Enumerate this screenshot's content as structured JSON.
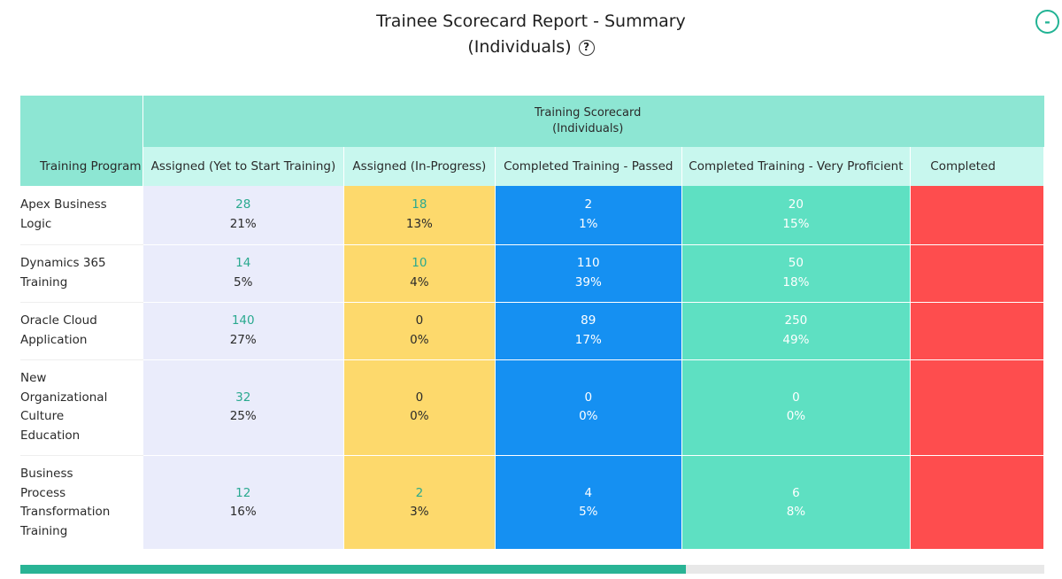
{
  "title": {
    "line1": "Trainee Scorecard Report - Summary",
    "line2": "(Individuals)",
    "help_icon": "?"
  },
  "collapse_icon": "-",
  "table": {
    "group_header_line1": "Training Scorecard",
    "group_header_line2": "(Individuals)",
    "program_header": "Training Program",
    "columns": [
      "Assigned (Yet to Start Training)",
      "Assigned (In-Progress)",
      "Completed Training - Passed",
      "Completed Training - Very Proficient",
      "Completed"
    ],
    "rows": [
      {
        "program": [
          "Apex Business",
          "Logic"
        ],
        "yet": {
          "num": "28",
          "pct": "21%"
        },
        "inprogress": {
          "num": "18",
          "pct": "13%"
        },
        "passed": {
          "num": "2",
          "pct": "1%"
        },
        "proficient": {
          "num": "20",
          "pct": "15%"
        }
      },
      {
        "program": [
          "Dynamics 365",
          "Training"
        ],
        "yet": {
          "num": "14",
          "pct": "5%"
        },
        "inprogress": {
          "num": "10",
          "pct": "4%"
        },
        "passed": {
          "num": "110",
          "pct": "39%"
        },
        "proficient": {
          "num": "50",
          "pct": "18%"
        }
      },
      {
        "program": [
          "Oracle Cloud",
          "Application"
        ],
        "yet": {
          "num": "140",
          "pct": "27%"
        },
        "inprogress": {
          "num": "0",
          "pct": "0%"
        },
        "passed": {
          "num": "89",
          "pct": "17%"
        },
        "proficient": {
          "num": "250",
          "pct": "49%"
        }
      },
      {
        "program": [
          "New",
          "Organizational",
          "Culture",
          "Education"
        ],
        "yet": {
          "num": "32",
          "pct": "25%"
        },
        "inprogress": {
          "num": "0",
          "pct": "0%"
        },
        "passed": {
          "num": "0",
          "pct": "0%"
        },
        "proficient": {
          "num": "0",
          "pct": "0%"
        }
      },
      {
        "program": [
          "Business",
          "Process",
          "Transformation",
          "Training"
        ],
        "yet": {
          "num": "12",
          "pct": "16%"
        },
        "inprogress": {
          "num": "2",
          "pct": "3%"
        },
        "passed": {
          "num": "4",
          "pct": "5%"
        },
        "proficient": {
          "num": "6",
          "pct": "8%"
        }
      }
    ]
  },
  "scrollbar": {
    "position_fraction": 0.65
  },
  "colors": {
    "header_teal": "#8de6d3",
    "subheader_mint": "#c8f7ee",
    "yet_to_start": "#eaecfb",
    "in_progress": "#fdd96c",
    "passed": "#1590f2",
    "very_proficient": "#5ee0c2",
    "completed_other": "#fe4d4e",
    "accent": "#29b495"
  }
}
